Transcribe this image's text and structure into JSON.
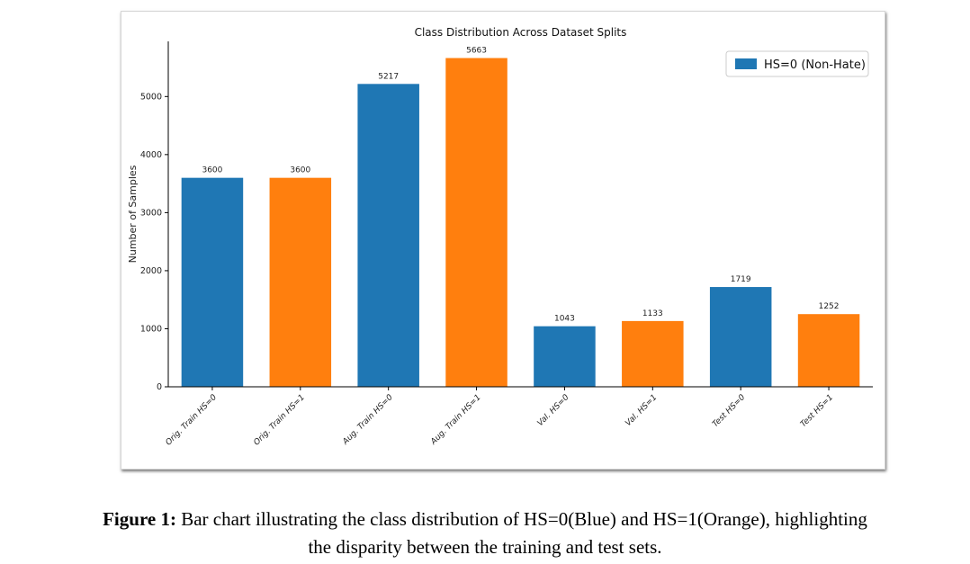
{
  "chart_data": {
    "type": "bar",
    "title": "Class Distribution Across Dataset Splits",
    "ylabel": "Number of Samples",
    "xlabel": "",
    "categories": [
      "Orig. Train HS=0",
      "Orig. Train HS=1",
      "Aug. Train HS=0",
      "Aug. Train HS=1",
      "Val. HS=0",
      "Val. HS=1",
      "Test HS=0",
      "Test HS=1"
    ],
    "values": [
      3600,
      3600,
      5217,
      5663,
      1043,
      1133,
      1719,
      1252
    ],
    "bar_colors": [
      "#1f77b4",
      "#ff7f0e",
      "#1f77b4",
      "#ff7f0e",
      "#1f77b4",
      "#ff7f0e",
      "#1f77b4",
      "#ff7f0e"
    ],
    "yticks": [
      0,
      1000,
      2000,
      3000,
      4000,
      5000
    ],
    "ylim": [
      0,
      5950
    ],
    "legend": {
      "position": "top-right",
      "entries": [
        {
          "label": "HS=0 (Non-Hate)",
          "color": "#1f77b4"
        }
      ]
    },
    "grid": false
  },
  "caption": {
    "label": "Figure 1:",
    "line1": "Bar chart illustrating the class distribution of HS=0(Blue) and HS=1(Orange), highlighting",
    "line2": "the disparity between the training and test sets."
  }
}
